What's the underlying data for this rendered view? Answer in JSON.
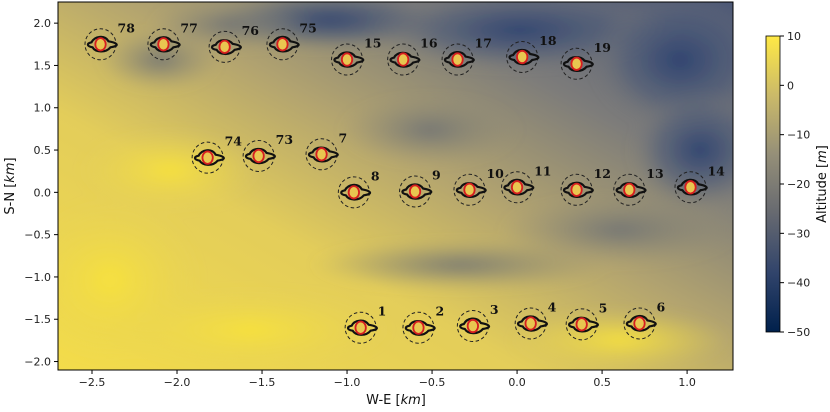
{
  "chart_data": {
    "type": "heatmap",
    "title": "",
    "xlabel": "W-E [km]",
    "ylabel": "S-N [km]",
    "xlim": [
      -2.7,
      1.27
    ],
    "ylim": [
      -2.1,
      2.25
    ],
    "x_ticks": [
      -2.5,
      -2.0,
      -1.5,
      -1.0,
      -0.5,
      0.0,
      0.5,
      1.0
    ],
    "x_tick_labels": [
      "−2.5",
      "−2.0",
      "−1.5",
      "−1.0",
      "−0.5",
      "0.0",
      "0.5",
      "1.0"
    ],
    "y_ticks": [
      -2.0,
      -1.5,
      -1.0,
      -0.5,
      0.0,
      0.5,
      1.0,
      1.5,
      2.0
    ],
    "y_tick_labels": [
      "−2.0",
      "−1.5",
      "−1.0",
      "−0.5",
      "0.0",
      "0.5",
      "1.0",
      "1.5",
      "2.0"
    ],
    "colorbar": {
      "label": "Altitude [m]",
      "range": [
        -50,
        10
      ],
      "ticks": [
        10,
        0,
        -10,
        -20,
        -30,
        -40,
        -50
      ],
      "tick_labels": [
        "10",
        "0",
        "−10",
        "−20",
        "−30",
        "−40",
        "−50"
      ],
      "colormap": "cividis",
      "colors": [
        "#00204c",
        "#31446b",
        "#666970",
        "#958f78",
        "#cbba69",
        "#ffe945"
      ]
    },
    "surface_pattern": "higher altitude (yellow) in the south and west, lower altitude (dark blue-grey) in the north-east",
    "sites": [
      {
        "id": "78",
        "x": -2.45,
        "y": 1.75
      },
      {
        "id": "77",
        "x": -2.08,
        "y": 1.75
      },
      {
        "id": "76",
        "x": -1.72,
        "y": 1.72
      },
      {
        "id": "75",
        "x": -1.38,
        "y": 1.75
      },
      {
        "id": "15",
        "x": -1.0,
        "y": 1.57
      },
      {
        "id": "16",
        "x": -0.67,
        "y": 1.57
      },
      {
        "id": "17",
        "x": -0.35,
        "y": 1.57
      },
      {
        "id": "18",
        "x": 0.03,
        "y": 1.6
      },
      {
        "id": "19",
        "x": 0.35,
        "y": 1.52
      },
      {
        "id": "74",
        "x": -1.82,
        "y": 0.41
      },
      {
        "id": "73",
        "x": -1.52,
        "y": 0.43
      },
      {
        "id": "7",
        "x": -1.15,
        "y": 0.45
      },
      {
        "id": "8",
        "x": -0.96,
        "y": 0.0
      },
      {
        "id": "9",
        "x": -0.6,
        "y": 0.01
      },
      {
        "id": "10",
        "x": -0.28,
        "y": 0.03
      },
      {
        "id": "11",
        "x": 0.0,
        "y": 0.06
      },
      {
        "id": "12",
        "x": 0.35,
        "y": 0.03
      },
      {
        "id": "13",
        "x": 0.66,
        "y": 0.03
      },
      {
        "id": "14",
        "x": 1.02,
        "y": 0.06
      },
      {
        "id": "1",
        "x": -0.92,
        "y": -1.6
      },
      {
        "id": "2",
        "x": -0.58,
        "y": -1.6
      },
      {
        "id": "3",
        "x": -0.26,
        "y": -1.58
      },
      {
        "id": "4",
        "x": 0.08,
        "y": -1.55
      },
      {
        "id": "5",
        "x": 0.38,
        "y": -1.56
      },
      {
        "id": "6",
        "x": 0.72,
        "y": -1.55
      }
    ],
    "markers": {
      "dashed_circle": "dashed black circle around each site",
      "outline": "black irregular outline extending mostly west-east",
      "core": "red outline with a yellow interior at the site centre"
    },
    "grid": false,
    "legend": "none"
  }
}
